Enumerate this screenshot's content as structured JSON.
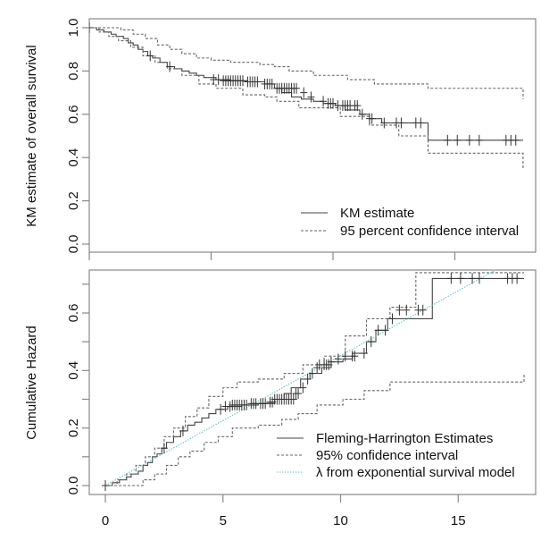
{
  "chart_data": [
    {
      "type": "line",
      "panel": "top",
      "title": "",
      "xlabel": "",
      "ylabel": "KM estimate of overall survival",
      "xlim": [
        0,
        18
      ],
      "ylim": [
        0,
        1
      ],
      "x_ticks": [
        0,
        5,
        10,
        15
      ],
      "x_tick_labels_shown": false,
      "y_ticks": [
        0.0,
        0.2,
        0.4,
        0.6,
        0.8,
        1.0
      ],
      "y_tick_labels": [
        "0.0",
        "0.2",
        "0.4",
        "0.6",
        "0.8",
        "1.0"
      ],
      "grid": false,
      "legend": {
        "placement": "bottom-right",
        "entries": [
          {
            "label": "KM estimate",
            "style": "solid",
            "color": "#444444"
          },
          {
            "label": "95 percent confidence interval",
            "style": "dashed",
            "color": "#666666"
          }
        ]
      },
      "series": [
        {
          "name": "KM estimate",
          "style": "step",
          "color": "#444444",
          "x": [
            0,
            0.3,
            0.6,
            0.9,
            1.1,
            1.4,
            1.6,
            1.8,
            2.0,
            2.2,
            2.4,
            2.6,
            2.9,
            3.2,
            3.5,
            3.8,
            4.1,
            4.4,
            4.7,
            5.2,
            5.8,
            6.5,
            7.2,
            7.6,
            7.9,
            8.3,
            8.7,
            9.2,
            9.6,
            10.1,
            10.5,
            11.1,
            11.5,
            12.0,
            13.9,
            17.8
          ],
          "y": [
            1.0,
            0.99,
            0.98,
            0.97,
            0.96,
            0.95,
            0.93,
            0.92,
            0.9,
            0.89,
            0.87,
            0.86,
            0.84,
            0.82,
            0.81,
            0.8,
            0.79,
            0.78,
            0.77,
            0.76,
            0.755,
            0.75,
            0.74,
            0.72,
            0.7,
            0.68,
            0.67,
            0.66,
            0.65,
            0.64,
            0.62,
            0.6,
            0.58,
            0.56,
            0.48,
            0.48
          ]
        },
        {
          "name": "KM upper 95% CI",
          "style": "step",
          "color": "#666666",
          "x": [
            0,
            0.7,
            1.3,
            1.8,
            2.3,
            2.8,
            3.3,
            3.8,
            4.4,
            5.0,
            5.8,
            7.0,
            7.6,
            8.2,
            9.2,
            10.6,
            11.7,
            13.9,
            17.8
          ],
          "y": [
            1.0,
            1.0,
            0.99,
            0.97,
            0.95,
            0.92,
            0.9,
            0.88,
            0.86,
            0.85,
            0.84,
            0.83,
            0.82,
            0.8,
            0.78,
            0.76,
            0.74,
            0.72,
            0.67
          ]
        },
        {
          "name": "KM lower 95% CI",
          "style": "step",
          "color": "#666666",
          "x": [
            0,
            0.4,
            0.8,
            1.2,
            1.7,
            2.2,
            2.7,
            3.2,
            3.8,
            4.5,
            5.2,
            6.3,
            7.2,
            7.7,
            8.6,
            10.3,
            11.5,
            12.7,
            13.9,
            17.8
          ],
          "y": [
            1.0,
            0.98,
            0.96,
            0.94,
            0.91,
            0.87,
            0.84,
            0.81,
            0.78,
            0.74,
            0.72,
            0.69,
            0.68,
            0.66,
            0.63,
            0.59,
            0.55,
            0.5,
            0.42,
            0.345
          ]
        }
      ],
      "censor_marks": {
        "x": [
          0,
          2.5,
          3.3,
          5.1,
          5.3,
          5.5,
          5.6,
          5.7,
          5.8,
          5.9,
          6.0,
          6.1,
          6.2,
          6.3,
          6.5,
          6.6,
          6.7,
          6.8,
          6.9,
          7.2,
          7.3,
          7.4,
          7.5,
          7.7,
          7.8,
          7.9,
          8.0,
          8.1,
          8.2,
          8.3,
          8.4,
          8.5,
          8.8,
          9.1,
          9.6,
          9.8,
          9.9,
          10.0,
          10.2,
          10.4,
          10.5,
          10.6,
          10.7,
          10.9,
          11.0,
          11.2,
          11.5,
          11.6,
          12.1,
          12.6,
          12.8,
          13.4,
          13.6,
          14.7,
          15.1,
          15.6,
          16.0,
          17.1,
          17.3,
          17.5
        ],
        "y": [
          1.0,
          0.87,
          0.82,
          0.76,
          0.76,
          0.755,
          0.755,
          0.755,
          0.755,
          0.755,
          0.755,
          0.755,
          0.755,
          0.755,
          0.75,
          0.75,
          0.75,
          0.75,
          0.75,
          0.74,
          0.74,
          0.74,
          0.74,
          0.72,
          0.72,
          0.72,
          0.72,
          0.72,
          0.72,
          0.72,
          0.72,
          0.72,
          0.7,
          0.68,
          0.66,
          0.65,
          0.65,
          0.65,
          0.64,
          0.64,
          0.64,
          0.64,
          0.64,
          0.64,
          0.64,
          0.6,
          0.58,
          0.58,
          0.56,
          0.56,
          0.56,
          0.56,
          0.56,
          0.48,
          0.48,
          0.48,
          0.48,
          0.48,
          0.48,
          0.48
        ]
      }
    },
    {
      "type": "line",
      "panel": "bottom",
      "title": "",
      "xlabel": "",
      "ylabel": "Cumulative Hazard",
      "xlim": [
        0,
        18
      ],
      "ylim": [
        0,
        0.72
      ],
      "x_ticks": [
        0,
        5,
        10,
        15
      ],
      "x_tick_labels": [
        "0",
        "5",
        "10",
        "15"
      ],
      "y_ticks": [
        0.0,
        0.1,
        0.2,
        0.3,
        0.4,
        0.5,
        0.6,
        0.7
      ],
      "y_tick_labels": [
        "0.0",
        "",
        "0.2",
        "",
        "0.4",
        "",
        "0.6",
        ""
      ],
      "grid": false,
      "legend": {
        "placement": "bottom-right",
        "entries": [
          {
            "label": "Fleming-Harrington Estimates",
            "style": "solid",
            "color": "#444444"
          },
          {
            "label": "95% confidence interval",
            "style": "dashed",
            "color": "#666666"
          },
          {
            "label": "λ from exponential survival model",
            "style": "dotted",
            "color": "#5fc4c8"
          }
        ]
      },
      "series": [
        {
          "name": "Fleming-Harrington Estimates",
          "style": "step",
          "color": "#444444",
          "x": [
            0,
            0.3,
            0.6,
            0.9,
            1.1,
            1.4,
            1.6,
            1.8,
            2.0,
            2.2,
            2.4,
            2.6,
            2.9,
            3.2,
            3.5,
            3.8,
            4.1,
            4.4,
            4.7,
            5.2,
            5.8,
            6.5,
            7.2,
            7.6,
            7.9,
            8.3,
            8.7,
            9.2,
            9.6,
            10.1,
            10.5,
            11.1,
            11.5,
            12.0,
            13.9,
            17.8
          ],
          "y": [
            0.0,
            0.01,
            0.02,
            0.03,
            0.04,
            0.05,
            0.07,
            0.08,
            0.1,
            0.11,
            0.13,
            0.15,
            0.17,
            0.19,
            0.21,
            0.22,
            0.235,
            0.25,
            0.265,
            0.275,
            0.28,
            0.285,
            0.3,
            0.32,
            0.34,
            0.37,
            0.39,
            0.41,
            0.43,
            0.44,
            0.46,
            0.5,
            0.54,
            0.58,
            0.72,
            0.72
          ]
        },
        {
          "name": "FH upper 95% CI",
          "style": "step",
          "color": "#666666",
          "x": [
            0,
            0.5,
            0.9,
            1.3,
            1.7,
            2.1,
            2.5,
            2.9,
            3.4,
            3.9,
            4.4,
            5.0,
            5.6,
            6.5,
            7.6,
            8.4,
            9.3,
            10.2,
            11.1,
            12.1,
            13.2,
            17.8
          ],
          "y": [
            0.0,
            0.02,
            0.04,
            0.07,
            0.1,
            0.13,
            0.17,
            0.2,
            0.24,
            0.27,
            0.31,
            0.34,
            0.36,
            0.37,
            0.39,
            0.42,
            0.45,
            0.52,
            0.58,
            0.62,
            0.74,
            0.74
          ]
        },
        {
          "name": "FH lower 95% CI",
          "style": "step",
          "color": "#666666",
          "x": [
            0,
            0.5,
            1.1,
            1.6,
            2.1,
            2.6,
            3.1,
            3.6,
            4.2,
            4.8,
            5.4,
            6.5,
            7.5,
            8.2,
            9.0,
            10.1,
            11.0,
            12.1,
            17.8
          ],
          "y": [
            0.0,
            0.0,
            0.0,
            0.02,
            0.04,
            0.07,
            0.1,
            0.12,
            0.15,
            0.17,
            0.2,
            0.21,
            0.23,
            0.25,
            0.28,
            0.3,
            0.33,
            0.36,
            0.39
          ]
        },
        {
          "name": "λ from exponential survival model",
          "style": "dotted",
          "color": "#5fc4c8",
          "x": [
            0,
            16.5
          ],
          "y": [
            0.0,
            0.745
          ]
        }
      ],
      "censor_marks": {
        "x": [
          0,
          2.5,
          3.3,
          4.9,
          5.1,
          5.3,
          5.4,
          5.5,
          5.6,
          5.7,
          5.8,
          5.9,
          6.0,
          6.2,
          6.3,
          6.4,
          6.6,
          6.7,
          6.8,
          7.0,
          7.1,
          7.2,
          7.3,
          7.4,
          7.5,
          7.6,
          7.7,
          7.8,
          7.9,
          8.0,
          8.1,
          8.2,
          8.4,
          8.6,
          8.8,
          9.0,
          9.1,
          9.3,
          9.4,
          9.5,
          9.6,
          9.9,
          10.2,
          10.5,
          10.6,
          11.0,
          11.3,
          11.6,
          11.9,
          12.2,
          12.5,
          12.8,
          13.3,
          13.5,
          14.7,
          15.1,
          15.6,
          15.9,
          17.1,
          17.3,
          17.5
        ],
        "y": [
          0.0,
          0.13,
          0.19,
          0.265,
          0.275,
          0.275,
          0.28,
          0.28,
          0.28,
          0.28,
          0.28,
          0.28,
          0.28,
          0.285,
          0.285,
          0.285,
          0.285,
          0.285,
          0.285,
          0.29,
          0.29,
          0.3,
          0.3,
          0.3,
          0.3,
          0.3,
          0.3,
          0.3,
          0.3,
          0.3,
          0.32,
          0.32,
          0.34,
          0.37,
          0.39,
          0.41,
          0.42,
          0.42,
          0.42,
          0.42,
          0.43,
          0.44,
          0.45,
          0.45,
          0.45,
          0.46,
          0.5,
          0.54,
          0.54,
          0.58,
          0.61,
          0.61,
          0.61,
          0.61,
          0.72,
          0.72,
          0.72,
          0.72,
          0.72,
          0.72,
          0.72
        ]
      }
    }
  ]
}
